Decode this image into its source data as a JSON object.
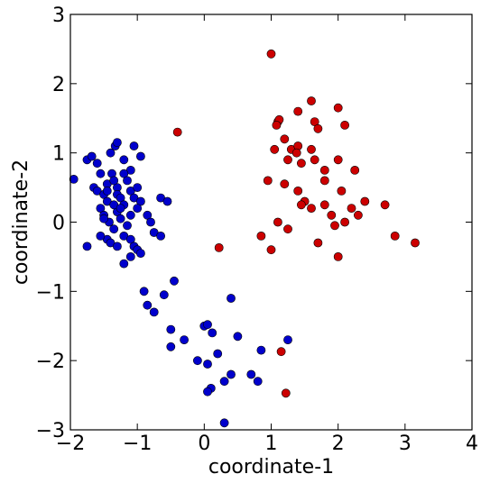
{
  "chart_data": {
    "type": "scatter",
    "title": "",
    "xlabel": "coordinate-1",
    "ylabel": "coordinate-2",
    "xlim": [
      -2,
      4
    ],
    "ylim": [
      -3,
      3
    ],
    "xticks": [
      -2,
      -1,
      0,
      1,
      2,
      3,
      4
    ],
    "xtick_labels": [
      "−2",
      "−1",
      "0",
      "1",
      "2",
      "3",
      "4"
    ],
    "yticks": [
      -3,
      -2,
      -1,
      0,
      1,
      2,
      3
    ],
    "ytick_labels": [
      "−3",
      "−2",
      "−1",
      "0",
      "1",
      "2",
      "3"
    ],
    "grid": false,
    "legend": null,
    "series": [
      {
        "color": "#0000cc",
        "points": [
          [
            -1.95,
            0.62
          ],
          [
            -1.75,
            0.9
          ],
          [
            -1.68,
            0.95
          ],
          [
            -1.6,
            0.85
          ],
          [
            -1.55,
            0.7
          ],
          [
            -1.65,
            0.5
          ],
          [
            -1.6,
            0.45
          ],
          [
            -1.5,
            0.4
          ],
          [
            -1.45,
            0.3
          ],
          [
            -1.55,
            0.2
          ],
          [
            -1.5,
            0.1
          ],
          [
            -1.42,
            0.0
          ],
          [
            -1.45,
            -0.25
          ],
          [
            -1.4,
            -0.3
          ],
          [
            -1.55,
            -0.2
          ],
          [
            -1.75,
            -0.35
          ],
          [
            -1.35,
            -0.1
          ],
          [
            -1.38,
            0.7
          ],
          [
            -1.45,
            0.55
          ],
          [
            -1.3,
            0.5
          ],
          [
            -1.4,
            1.0
          ],
          [
            -1.33,
            1.1
          ],
          [
            -1.3,
            1.15
          ],
          [
            -1.2,
            0.9
          ],
          [
            -1.05,
            1.1
          ],
          [
            -0.95,
            0.95
          ],
          [
            -1.1,
            0.75
          ],
          [
            -1.2,
            0.7
          ],
          [
            -1.15,
            0.6
          ],
          [
            -1.3,
            0.4
          ],
          [
            -1.25,
            0.35
          ],
          [
            -1.2,
            0.25
          ],
          [
            -1.3,
            0.15
          ],
          [
            -1.25,
            0.05
          ],
          [
            -1.35,
            0.6
          ],
          [
            -1.1,
            0.45
          ],
          [
            -1.05,
            0.35
          ],
          [
            -1.0,
            0.5
          ],
          [
            -0.95,
            0.3
          ],
          [
            -1.0,
            0.2
          ],
          [
            -1.1,
            0.1
          ],
          [
            -1.15,
            -0.05
          ],
          [
            -1.2,
            -0.2
          ],
          [
            -1.1,
            -0.25
          ],
          [
            -1.05,
            -0.35
          ],
          [
            -1.0,
            -0.4
          ],
          [
            -0.95,
            -0.45
          ],
          [
            -1.1,
            -0.5
          ],
          [
            -1.2,
            -0.6
          ],
          [
            -0.85,
            0.1
          ],
          [
            -0.8,
            0.0
          ],
          [
            -0.75,
            -0.15
          ],
          [
            -0.65,
            0.35
          ],
          [
            -0.55,
            0.3
          ],
          [
            -0.65,
            -0.2
          ],
          [
            -1.3,
            -0.35
          ],
          [
            -1.35,
            0.25
          ],
          [
            -1.45,
            0.45
          ],
          [
            -1.5,
            0.05
          ],
          [
            -1.25,
            0.2
          ],
          [
            -0.9,
            -1.0
          ],
          [
            -0.85,
            -1.2
          ],
          [
            -0.75,
            -1.3
          ],
          [
            -0.6,
            -1.05
          ],
          [
            -0.45,
            -0.85
          ],
          [
            -0.5,
            -1.55
          ],
          [
            -0.5,
            -1.8
          ],
          [
            -0.3,
            -1.7
          ],
          [
            0.0,
            -1.5
          ],
          [
            0.05,
            -1.48
          ],
          [
            -0.1,
            -2.0
          ],
          [
            0.05,
            -2.05
          ],
          [
            0.1,
            -2.4
          ],
          [
            0.05,
            -2.45
          ],
          [
            0.2,
            -1.9
          ],
          [
            0.4,
            -1.1
          ],
          [
            0.5,
            -1.65
          ],
          [
            0.4,
            -2.2
          ],
          [
            0.3,
            -2.3
          ],
          [
            0.7,
            -2.2
          ],
          [
            0.8,
            -2.3
          ],
          [
            0.85,
            -1.85
          ],
          [
            1.25,
            -1.7
          ],
          [
            0.3,
            -2.9
          ],
          [
            0.12,
            -1.6
          ]
        ]
      },
      {
        "color": "#cc0000",
        "points": [
          [
            -0.4,
            1.3
          ],
          [
            0.22,
            -0.37
          ],
          [
            1.0,
            2.43
          ],
          [
            1.1,
            1.45
          ],
          [
            1.12,
            1.48
          ],
          [
            1.08,
            1.4
          ],
          [
            1.2,
            1.2
          ],
          [
            1.4,
            1.6
          ],
          [
            1.6,
            1.75
          ],
          [
            1.65,
            1.45
          ],
          [
            1.7,
            1.35
          ],
          [
            2.0,
            1.65
          ],
          [
            2.1,
            1.4
          ],
          [
            1.05,
            1.05
          ],
          [
            1.25,
            0.9
          ],
          [
            1.3,
            1.05
          ],
          [
            1.4,
            1.1
          ],
          [
            1.38,
            1.0
          ],
          [
            1.45,
            0.85
          ],
          [
            1.6,
            1.05
          ],
          [
            1.65,
            0.9
          ],
          [
            1.8,
            0.75
          ],
          [
            2.0,
            0.9
          ],
          [
            2.25,
            0.75
          ],
          [
            0.95,
            0.6
          ],
          [
            1.2,
            0.55
          ],
          [
            1.4,
            0.45
          ],
          [
            1.5,
            0.3
          ],
          [
            1.45,
            0.25
          ],
          [
            1.6,
            0.2
          ],
          [
            1.8,
            0.25
          ],
          [
            1.8,
            0.6
          ],
          [
            2.05,
            0.45
          ],
          [
            2.2,
            0.2
          ],
          [
            2.4,
            0.3
          ],
          [
            2.7,
            0.25
          ],
          [
            1.1,
            0.0
          ],
          [
            1.25,
            -0.1
          ],
          [
            1.7,
            -0.3
          ],
          [
            1.95,
            -0.05
          ],
          [
            2.1,
            0.0
          ],
          [
            2.3,
            0.1
          ],
          [
            0.85,
            -0.2
          ],
          [
            1.0,
            -0.4
          ],
          [
            2.0,
            -0.5
          ],
          [
            2.85,
            -0.2
          ],
          [
            3.15,
            -0.3
          ],
          [
            1.15,
            -1.87
          ],
          [
            1.22,
            -2.47
          ],
          [
            1.9,
            0.1
          ]
        ]
      }
    ]
  }
}
